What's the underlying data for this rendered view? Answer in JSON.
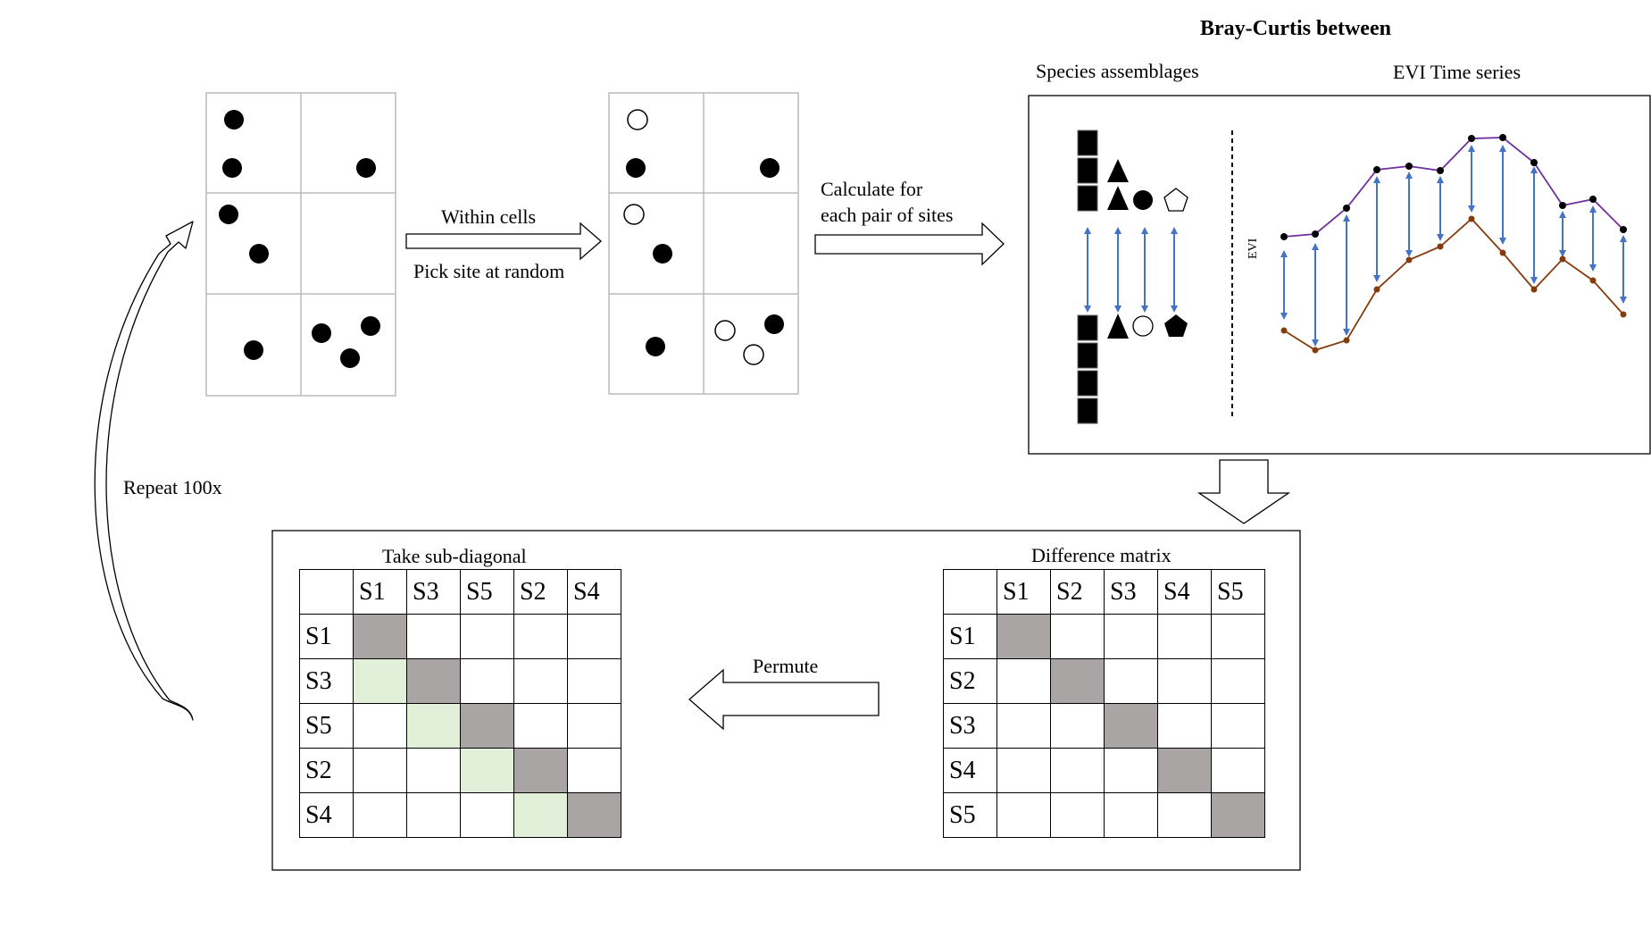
{
  "flow": {
    "step1_top": "Within cells",
    "step1_bottom": "Pick site at random",
    "step2_line1": "Calculate for",
    "step2_line2": "each pair of sites",
    "permute": "Permute",
    "repeat": "Repeat 100x"
  },
  "bray_curtis": {
    "title": "Bray-Curtis between",
    "species_label": "Species assemblages",
    "evi_label": "EVI Time series",
    "evi_axis": "EVI"
  },
  "difference_matrix": {
    "title": "Difference matrix",
    "columns": [
      "S1",
      "S2",
      "S3",
      "S4",
      "S5"
    ],
    "rows": [
      "S1",
      "S2",
      "S3",
      "S4",
      "S5"
    ]
  },
  "subdiagonal_matrix": {
    "title": "Take sub-diagonal",
    "columns": [
      "S1",
      "S3",
      "S5",
      "S2",
      "S4"
    ],
    "rows": [
      "S1",
      "S3",
      "S5",
      "S2",
      "S4"
    ]
  },
  "colors": {
    "diagonal": "#a8a5a4",
    "subdiagonal": "#e2efd9",
    "evi_top_line": "#7030a0",
    "evi_bottom_line": "#843c0c",
    "difference_arrows": "#4472c4"
  }
}
